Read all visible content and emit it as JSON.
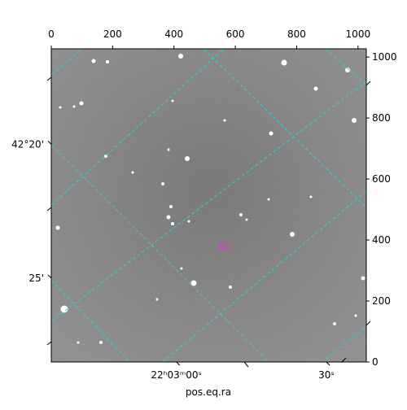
{
  "chart_data": {
    "type": "image",
    "x_label": "pos.eq.ra",
    "xlim": [
      0,
      1027
    ],
    "ylim": [
      0,
      1027
    ],
    "xticks": [
      0,
      200,
      400,
      600,
      800,
      1000
    ],
    "yticks": [
      0,
      200,
      400,
      600,
      800,
      1000
    ],
    "ra_ticks": [
      {
        "value": 408,
        "label": "22ʰ03ᵐ00ˢ"
      },
      {
        "value": 897,
        "label": "30ˢ"
      }
    ],
    "dec_ticks": [
      {
        "value": 714,
        "label": "42°20'"
      },
      {
        "value": 275,
        "label": "25'"
      }
    ]
  }
}
